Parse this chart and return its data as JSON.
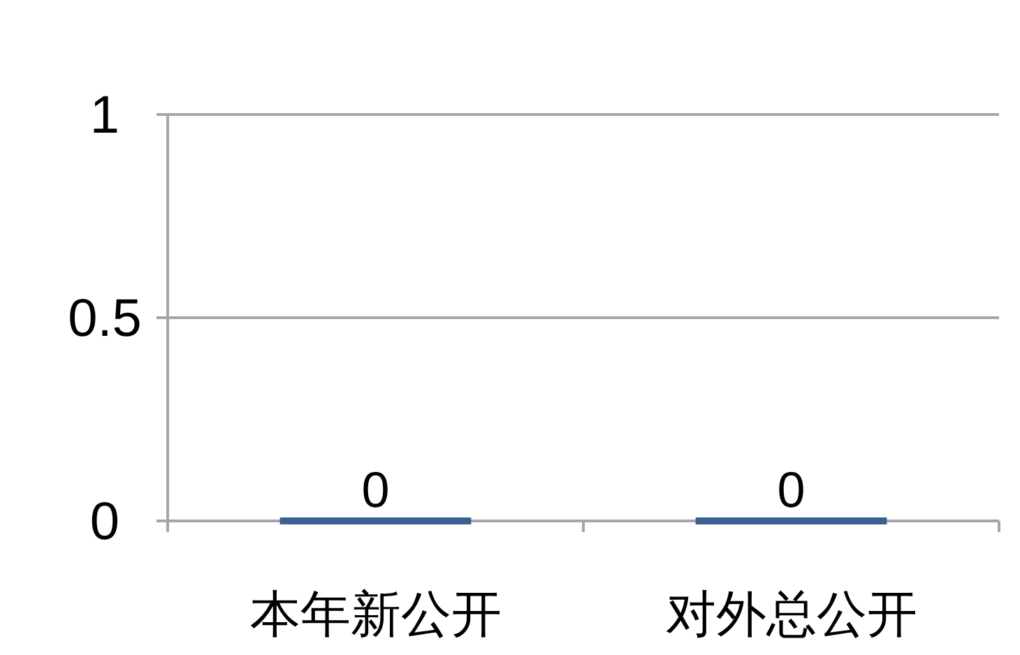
{
  "chart_data": {
    "type": "bar",
    "categories": [
      "本年新公开",
      "对外总公开"
    ],
    "series": [
      {
        "color": "#3c6090",
        "values": [
          0,
          0
        ]
      }
    ],
    "ylim": [
      0,
      1
    ],
    "yticks": [
      0,
      0.5,
      1
    ],
    "grid": "y",
    "data_labels": true
  }
}
